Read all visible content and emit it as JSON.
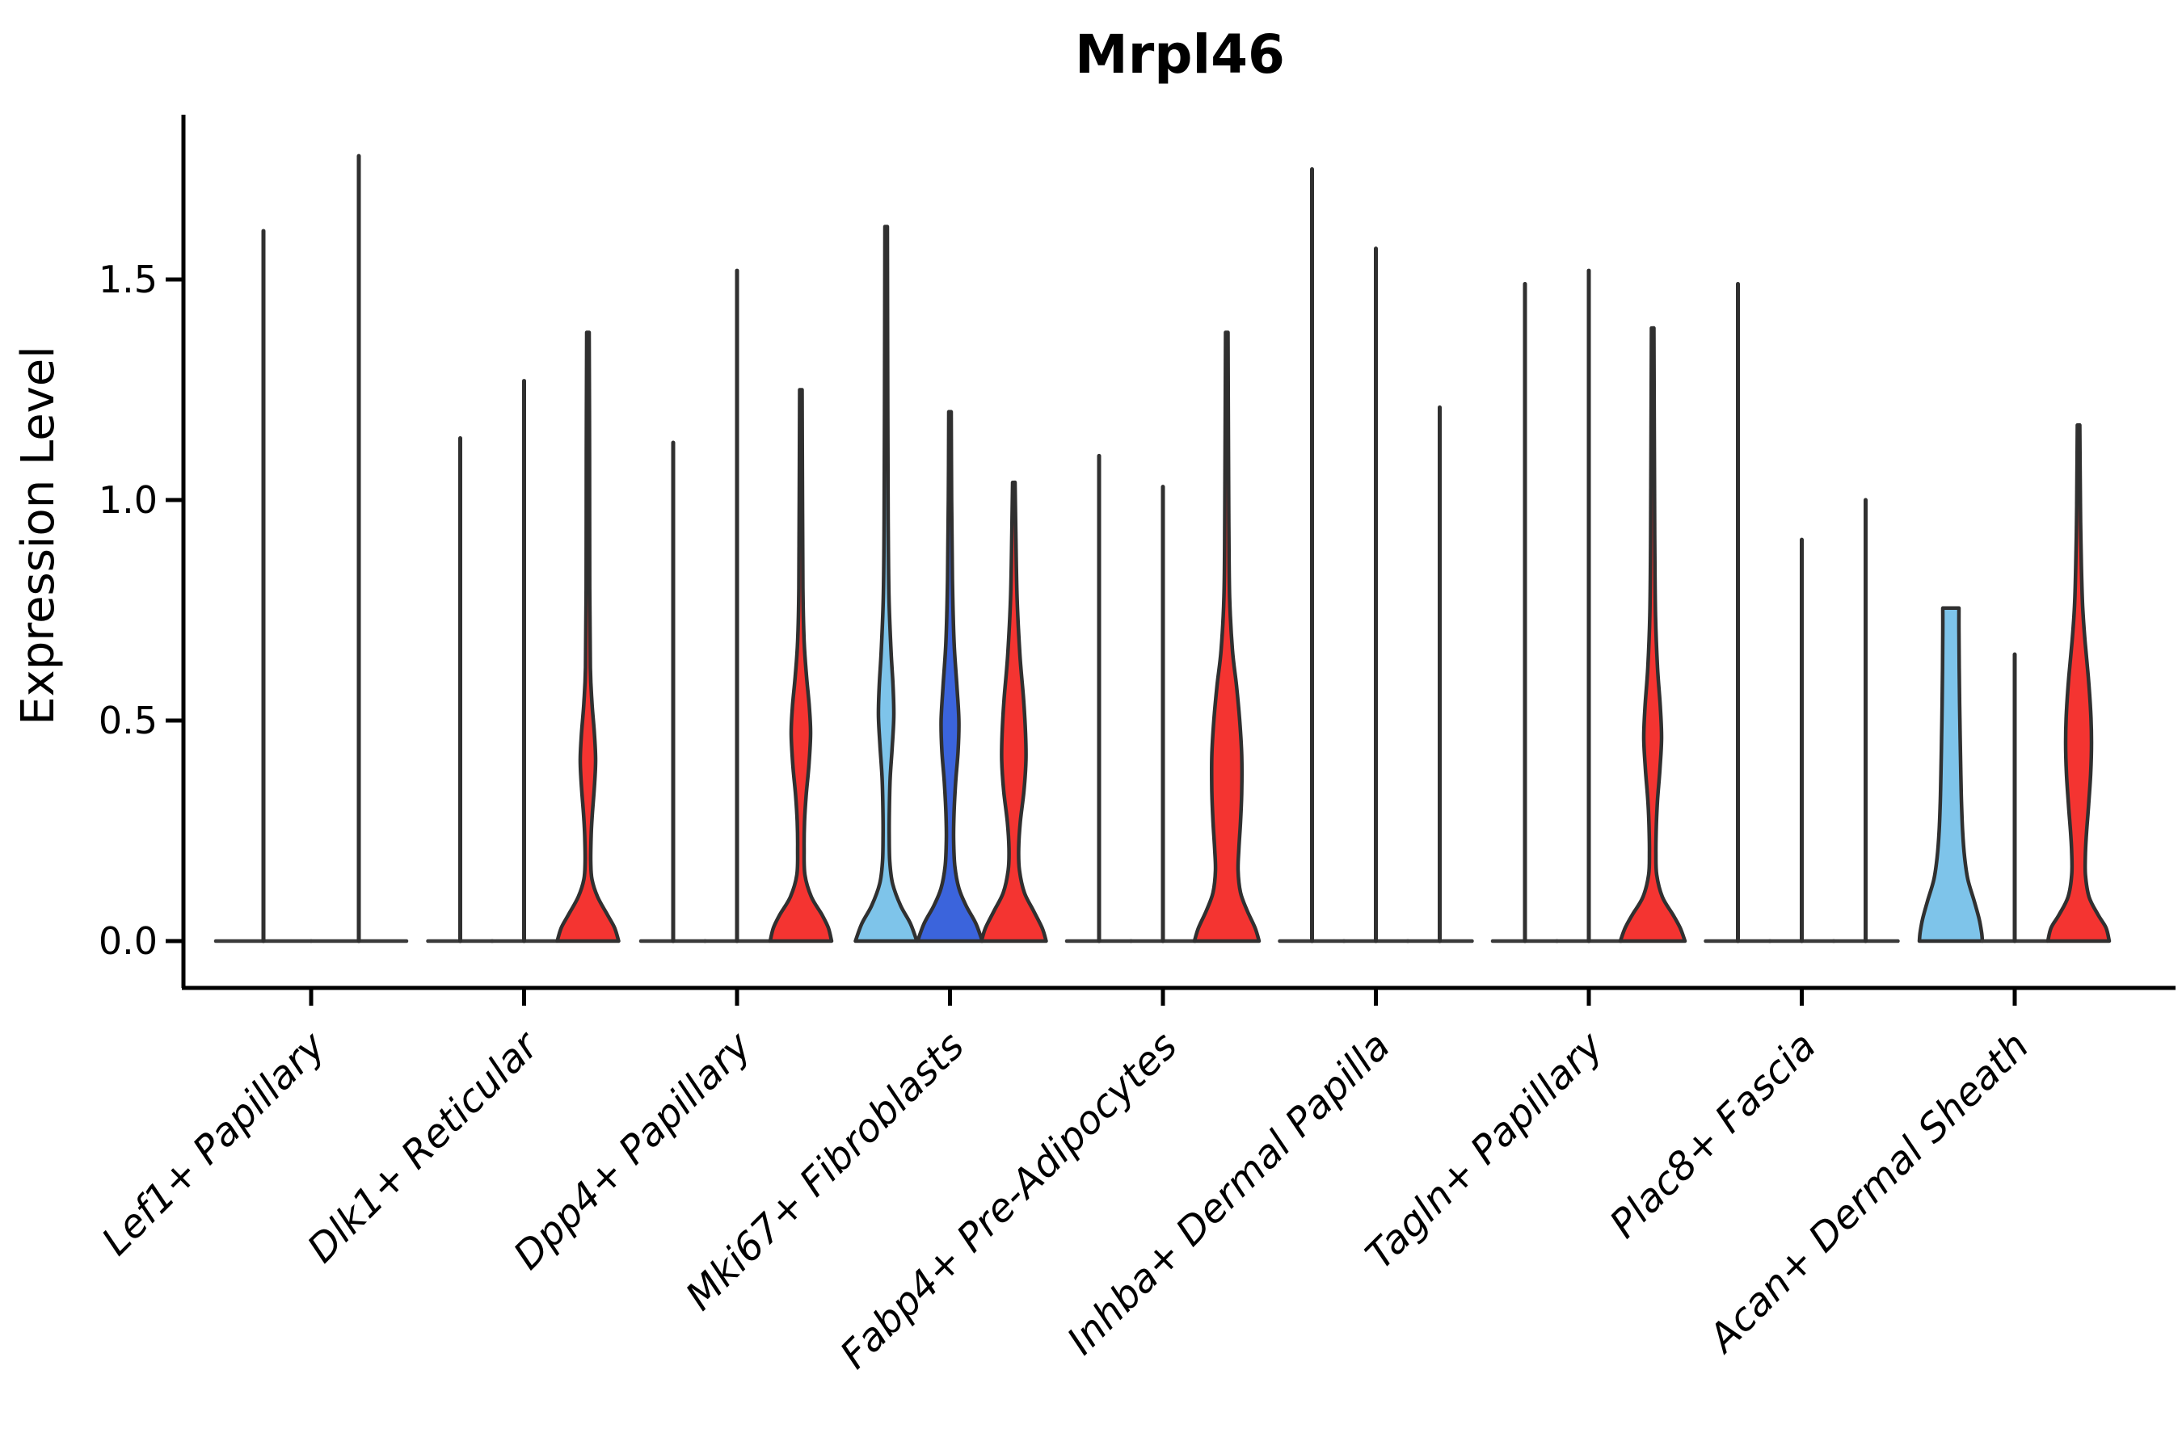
{
  "figure": {
    "background": "#ffffff"
  },
  "chart_data": {
    "type": "violin",
    "title": "Mrpl46",
    "xlabel": "",
    "ylabel": "Expression Level",
    "legend": "none",
    "grid": false,
    "ylim": [
      -0.06,
      1.9
    ],
    "ytick_labels": [
      "0.0",
      "0.5",
      "1.0",
      "1.5"
    ],
    "ytick_values": [
      0.0,
      0.5,
      1.0,
      1.5
    ],
    "x_tick_rotation_deg": 45,
    "palette": {
      "light_blue": "#7EC4EA",
      "dark_blue": "#3B64DC",
      "red": "#F43431",
      "outline": "#303030",
      "baseline": "#3A3A3A",
      "text": "#000000"
    },
    "categories": [
      {
        "label": "Lef1+ Papillary",
        "violins": [
          {
            "kind": "spike",
            "max": 1.61,
            "dx": -59,
            "halfwidth": 59
          },
          {
            "kind": "spike",
            "max": 1.78,
            "dx": 59,
            "halfwidth": 59
          }
        ]
      },
      {
        "label": "Dlk1+ Reticular",
        "violins": [
          {
            "kind": "spike",
            "max": 1.14,
            "dx": -79,
            "halfwidth": 40
          },
          {
            "kind": "spike",
            "max": 1.27,
            "dx": 0,
            "halfwidth": 40
          },
          {
            "kind": "shaped",
            "fill": "red",
            "max": 1.38,
            "dx": 79,
            "halfwidth": 40,
            "profile": [
              [
                1.38,
                1.5
              ],
              [
                1.1,
                2
              ],
              [
                0.8,
                2.2
              ],
              [
                0.62,
                3
              ],
              [
                0.54,
                5
              ],
              [
                0.47,
                8
              ],
              [
                0.41,
                9.5
              ],
              [
                0.35,
                8
              ],
              [
                0.29,
                5.5
              ],
              [
                0.24,
                4
              ],
              [
                0.18,
                3.5
              ],
              [
                0.14,
                5
              ],
              [
                0.1,
                12
              ],
              [
                0.06,
                24
              ],
              [
                0.03,
                33
              ],
              [
                0.0,
                38
              ]
            ]
          }
        ]
      },
      {
        "label": "Dpp4+ Papillary",
        "violins": [
          {
            "kind": "spike",
            "max": 1.13,
            "dx": -79,
            "halfwidth": 40
          },
          {
            "kind": "spike",
            "max": 1.52,
            "dx": 0,
            "halfwidth": 40
          },
          {
            "kind": "shaped",
            "fill": "red",
            "max": 1.25,
            "dx": 79,
            "halfwidth": 40,
            "profile": [
              [
                1.25,
                1.5
              ],
              [
                1.0,
                2
              ],
              [
                0.8,
                2.5
              ],
              [
                0.68,
                4
              ],
              [
                0.6,
                7
              ],
              [
                0.53,
                10.5
              ],
              [
                0.47,
                12
              ],
              [
                0.4,
                10
              ],
              [
                0.33,
                6.5
              ],
              [
                0.27,
                4.5
              ],
              [
                0.21,
                4
              ],
              [
                0.15,
                5
              ],
              [
                0.1,
                13
              ],
              [
                0.06,
                26
              ],
              [
                0.03,
                34
              ],
              [
                0.0,
                38
              ]
            ]
          }
        ]
      },
      {
        "label": "Mki67+ Fibroblasts",
        "violins": [
          {
            "kind": "shaped",
            "fill": "light_blue",
            "max": 1.62,
            "dx": -79,
            "halfwidth": 40,
            "profile": [
              [
                1.62,
                1.5
              ],
              [
                1.2,
                2
              ],
              [
                0.95,
                2.5
              ],
              [
                0.78,
                3.5
              ],
              [
                0.66,
                6
              ],
              [
                0.58,
                8.5
              ],
              [
                0.51,
                9.5
              ],
              [
                0.44,
                7.5
              ],
              [
                0.37,
                5
              ],
              [
                0.3,
                4
              ],
              [
                0.24,
                3.8
              ],
              [
                0.18,
                4.5
              ],
              [
                0.13,
                8
              ],
              [
                0.08,
                18
              ],
              [
                0.04,
                30
              ],
              [
                0.0,
                38
              ]
            ]
          },
          {
            "kind": "shaped",
            "fill": "dark_blue",
            "max": 1.2,
            "dx": 0,
            "halfwidth": 40,
            "profile": [
              [
                1.2,
                1.5
              ],
              [
                1.0,
                2
              ],
              [
                0.82,
                3
              ],
              [
                0.68,
                5
              ],
              [
                0.58,
                8.5
              ],
              [
                0.5,
                11
              ],
              [
                0.43,
                10
              ],
              [
                0.36,
                7
              ],
              [
                0.29,
                5
              ],
              [
                0.23,
                4.5
              ],
              [
                0.17,
                6
              ],
              [
                0.12,
                11
              ],
              [
                0.08,
                20
              ],
              [
                0.04,
                32
              ],
              [
                0.0,
                40
              ]
            ]
          },
          {
            "kind": "shaped",
            "fill": "red",
            "max": 1.04,
            "dx": 79,
            "halfwidth": 40,
            "profile": [
              [
                1.04,
                1.5
              ],
              [
                0.92,
                2.5
              ],
              [
                0.78,
                4
              ],
              [
                0.65,
                7.5
              ],
              [
                0.55,
                12
              ],
              [
                0.47,
                14.5
              ],
              [
                0.41,
                15
              ],
              [
                0.34,
                12.5
              ],
              [
                0.27,
                8
              ],
              [
                0.21,
                6
              ],
              [
                0.16,
                7
              ],
              [
                0.11,
                13
              ],
              [
                0.07,
                24
              ],
              [
                0.03,
                35
              ],
              [
                0.0,
                40
              ]
            ]
          }
        ]
      },
      {
        "label": "Fabp4+ Pre-Adipocytes",
        "violins": [
          {
            "kind": "spike",
            "max": 1.1,
            "dx": -79,
            "halfwidth": 40
          },
          {
            "kind": "spike",
            "max": 1.03,
            "dx": 0,
            "halfwidth": 40
          },
          {
            "kind": "shaped",
            "fill": "red",
            "max": 1.38,
            "dx": 79,
            "halfwidth": 40,
            "profile": [
              [
                1.38,
                1.5
              ],
              [
                1.15,
                2
              ],
              [
                0.95,
                2.5
              ],
              [
                0.78,
                3.5
              ],
              [
                0.66,
                7
              ],
              [
                0.58,
                12
              ],
              [
                0.5,
                16
              ],
              [
                0.42,
                18.5
              ],
              [
                0.34,
                18.5
              ],
              [
                0.27,
                17
              ],
              [
                0.21,
                15
              ],
              [
                0.16,
                14
              ],
              [
                0.11,
                17
              ],
              [
                0.07,
                25
              ],
              [
                0.03,
                35
              ],
              [
                0.0,
                40
              ]
            ]
          }
        ]
      },
      {
        "label": "Inhba+ Dermal Papilla",
        "violins": [
          {
            "kind": "spike",
            "max": 1.75,
            "dx": -79,
            "halfwidth": 40
          },
          {
            "kind": "spike",
            "max": 1.57,
            "dx": 0,
            "halfwidth": 40
          },
          {
            "kind": "spike",
            "max": 1.21,
            "dx": 79,
            "halfwidth": 40
          }
        ]
      },
      {
        "label": "Tagln+ Papillary",
        "violins": [
          {
            "kind": "spike",
            "max": 1.49,
            "dx": -79,
            "halfwidth": 40
          },
          {
            "kind": "spike",
            "max": 1.52,
            "dx": 0,
            "halfwidth": 40
          },
          {
            "kind": "shaped",
            "fill": "red",
            "max": 1.39,
            "dx": 79,
            "halfwidth": 40,
            "profile": [
              [
                1.39,
                1.5
              ],
              [
                1.15,
                2
              ],
              [
                0.92,
                2.5
              ],
              [
                0.74,
                3.5
              ],
              [
                0.62,
                6
              ],
              [
                0.53,
                9.5
              ],
              [
                0.46,
                11
              ],
              [
                0.39,
                9
              ],
              [
                0.32,
                6
              ],
              [
                0.26,
                4.5
              ],
              [
                0.2,
                4
              ],
              [
                0.15,
                5
              ],
              [
                0.1,
                12
              ],
              [
                0.06,
                25
              ],
              [
                0.03,
                34
              ],
              [
                0.0,
                40
              ]
            ]
          }
        ]
      },
      {
        "label": "Plac8+ Fascia",
        "violins": [
          {
            "kind": "spike",
            "max": 1.49,
            "dx": -79,
            "halfwidth": 40
          },
          {
            "kind": "spike",
            "max": 0.91,
            "dx": 0,
            "halfwidth": 40
          },
          {
            "kind": "spike",
            "max": 1.0,
            "dx": 79,
            "halfwidth": 40
          }
        ]
      },
      {
        "label": "Acan+ Dermal Sheath",
        "violins": [
          {
            "kind": "shaped",
            "fill": "light_blue",
            "max": 0.755,
            "dx": -79,
            "halfwidth": 40,
            "profile": [
              [
                0.755,
                10
              ],
              [
                0.7,
                10
              ],
              [
                0.62,
                10.3
              ],
              [
                0.54,
                10.8
              ],
              [
                0.46,
                11.5
              ],
              [
                0.38,
                12.3
              ],
              [
                0.31,
                13.2
              ],
              [
                0.25,
                14.5
              ],
              [
                0.19,
                17
              ],
              [
                0.14,
                21
              ],
              [
                0.09,
                29
              ],
              [
                0.05,
                35
              ],
              [
                0.02,
                38
              ],
              [
                0.0,
                39
              ]
            ]
          },
          {
            "kind": "spike",
            "max": 0.65,
            "dx": 0,
            "halfwidth": 40
          },
          {
            "kind": "shaped",
            "fill": "red",
            "max": 1.17,
            "dx": 79,
            "halfwidth": 40,
            "profile": [
              [
                1.17,
                1.5
              ],
              [
                1.05,
                2
              ],
              [
                0.95,
                2.5
              ],
              [
                0.85,
                3.5
              ],
              [
                0.76,
                5
              ],
              [
                0.68,
                8
              ],
              [
                0.6,
                12
              ],
              [
                0.52,
                15
              ],
              [
                0.45,
                16
              ],
              [
                0.38,
                15
              ],
              [
                0.31,
                12.5
              ],
              [
                0.25,
                10
              ],
              [
                0.2,
                8.5
              ],
              [
                0.15,
                8.5
              ],
              [
                0.1,
                13
              ],
              [
                0.06,
                24
              ],
              [
                0.03,
                34
              ],
              [
                0.0,
                38
              ]
            ]
          }
        ]
      }
    ]
  }
}
